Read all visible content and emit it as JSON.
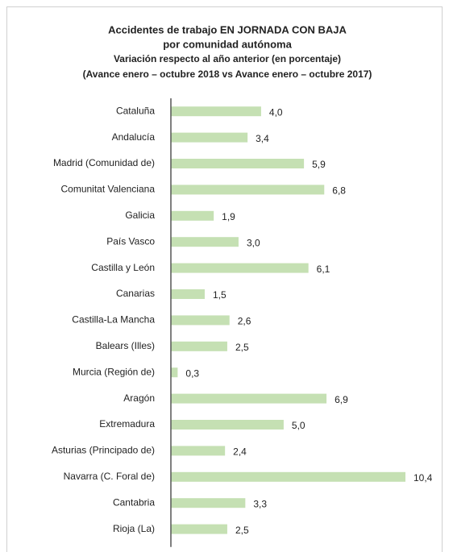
{
  "chart_data": {
    "type": "bar",
    "orientation": "horizontal",
    "title": "Accidentes de trabajo EN JORNADA CON BAJA",
    "title_line2": "por comunidad autónoma",
    "subtitle": "Variación respecto al año anterior (en porcentaje)",
    "subtitle_line2": "(Avance enero – octubre 2018 vs Avance enero – octubre 2017)",
    "categories": [
      "Cataluña",
      "Andalucía",
      "Madrid (Comunidad de)",
      "Comunitat Valenciana",
      "Galicia",
      "País Vasco",
      "Castilla y León",
      "Canarias",
      "Castilla-La Mancha",
      "Balears (Illes)",
      "Murcia (Región de)",
      "Aragón",
      "Extremadura",
      "Asturias (Principado de)",
      "Navarra (C. Foral de)",
      "Cantabria",
      "Rioja (La)"
    ],
    "values": [
      4.0,
      3.4,
      5.9,
      6.8,
      1.9,
      3.0,
      6.1,
      1.5,
      2.6,
      2.5,
      0.3,
      6.9,
      5.0,
      2.4,
      10.4,
      3.3,
      2.5
    ],
    "value_labels": [
      "4,0",
      "3,4",
      "5,9",
      "6,8",
      "1,9",
      "3,0",
      "6,1",
      "1,5",
      "2,6",
      "2,5",
      "0,3",
      "6,9",
      "5,0",
      "2,4",
      "10,4",
      "3,3",
      "2,5"
    ],
    "color": "#c5e0b3"
  }
}
